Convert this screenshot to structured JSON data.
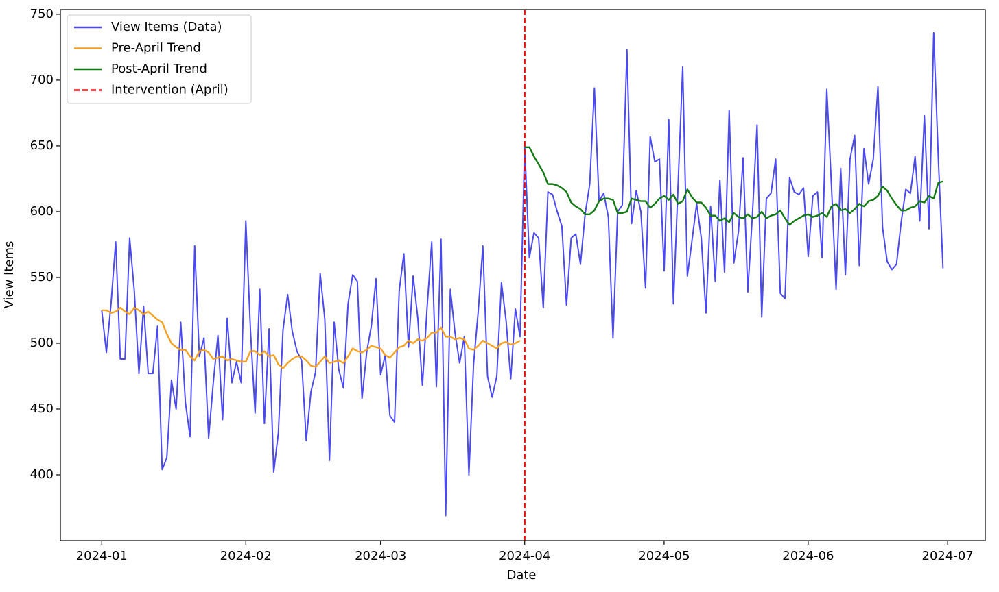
{
  "chart_data": {
    "type": "line",
    "xlabel": "Date",
    "ylabel": "View Items",
    "x": [
      0,
      1,
      2,
      3,
      4,
      5,
      6,
      7,
      8,
      9,
      10,
      11,
      12,
      13,
      14,
      15,
      16,
      17,
      18,
      19,
      20,
      21,
      22,
      23,
      24,
      25,
      26,
      27,
      28,
      29,
      30,
      31,
      32,
      33,
      34,
      35,
      36,
      37,
      38,
      39,
      40,
      41,
      42,
      43,
      44,
      45,
      46,
      47,
      48,
      49,
      50,
      51,
      52,
      53,
      54,
      55,
      56,
      57,
      58,
      59,
      60,
      61,
      62,
      63,
      64,
      65,
      66,
      67,
      68,
      69,
      70,
      71,
      72,
      73,
      74,
      75,
      76,
      77,
      78,
      79,
      80,
      81,
      82,
      83,
      84,
      85,
      86,
      87,
      88,
      89,
      90,
      91,
      92,
      93,
      94,
      95,
      96,
      97,
      98,
      99,
      100,
      101,
      102,
      103,
      104,
      105,
      106,
      107,
      108,
      109,
      110,
      111,
      112,
      113,
      114,
      115,
      116,
      117,
      118,
      119,
      120,
      121,
      122,
      123,
      124,
      125,
      126,
      127,
      128,
      129,
      130,
      131,
      132,
      133,
      134,
      135,
      136,
      137,
      138,
      139,
      140,
      141,
      142,
      143,
      144,
      145,
      146,
      147,
      148,
      149,
      150,
      151,
      152,
      153,
      154,
      155,
      156,
      157,
      158,
      159,
      160,
      161,
      162,
      163,
      164,
      165,
      166,
      167,
      168,
      169,
      170,
      171,
      172,
      173,
      174,
      175,
      176,
      177,
      178,
      179,
      180,
      181
    ],
    "series": [
      {
        "name": "View Items (Data)",
        "color": "#4a4af0",
        "values": [
          525,
          493,
          530,
          577,
          488,
          488,
          580,
          540,
          477,
          528,
          477,
          477,
          513,
          404,
          413,
          472,
          450,
          516,
          455,
          429,
          574,
          490,
          504,
          428,
          470,
          506,
          442,
          519,
          470,
          486,
          470,
          593,
          510,
          447,
          541,
          439,
          511,
          402,
          432,
          510,
          537,
          509,
          494,
          487,
          426,
          463,
          478,
          553,
          518,
          411,
          516,
          480,
          466,
          530,
          552,
          547,
          458,
          493,
          513,
          549,
          476,
          491,
          445,
          440,
          540,
          568,
          497,
          551,
          519,
          468,
          527,
          577,
          467,
          579,
          369,
          541,
          508,
          485,
          505,
          400,
          484,
          524,
          574,
          475,
          459,
          475,
          546,
          517,
          473,
          526,
          505,
          650,
          565,
          584,
          580,
          527,
          615,
          613,
          600,
          589,
          529,
          580,
          583,
          560,
          598,
          621,
          694,
          608,
          614,
          596,
          504,
          600,
          605,
          723,
          591,
          616,
          600,
          542,
          657,
          638,
          640,
          555,
          670,
          530,
          620,
          710,
          551,
          578,
          606,
          580,
          523,
          604,
          547,
          624,
          554,
          677,
          561,
          585,
          641,
          539,
          598,
          666,
          520,
          610,
          614,
          640,
          538,
          534,
          626,
          615,
          613,
          618,
          566,
          612,
          615,
          565,
          693,
          620,
          541,
          633,
          552,
          640,
          658,
          559,
          648,
          621,
          640,
          695,
          588,
          562,
          556,
          560,
          592,
          617,
          614,
          642,
          593,
          673,
          587,
          736,
          640,
          557
        ]
      },
      {
        "name": "Pre-April Trend",
        "color": "#f5a020",
        "values": [
          525,
          525,
          523,
          524,
          527,
          524,
          522,
          527,
          525,
          522,
          524,
          521,
          518,
          516,
          507,
          500,
          497,
          495,
          495,
          490,
          487,
          494,
          495,
          493,
          488,
          489,
          490,
          487,
          488,
          487,
          486,
          486,
          494,
          494,
          491,
          494,
          490,
          491,
          484,
          481,
          485,
          488,
          490,
          490,
          487,
          483,
          482,
          486,
          490,
          485,
          486,
          487,
          485,
          490,
          496,
          494,
          493,
          495,
          498,
          497,
          496,
          491,
          489,
          493,
          497,
          498,
          502,
          500,
          503,
          502,
          504,
          508,
          508,
          512,
          505,
          505,
          503,
          504,
          503,
          496,
          495,
          498,
          502,
          500,
          498,
          496,
          500,
          501,
          499,
          500,
          502,
          null,
          null,
          null,
          null,
          null,
          null,
          null,
          null,
          null,
          null,
          null,
          null,
          null,
          null,
          null,
          null,
          null,
          null,
          null,
          null,
          null,
          null,
          null,
          null,
          null,
          null,
          null,
          null,
          null,
          null,
          null,
          null,
          null,
          null,
          null,
          null,
          null,
          null,
          null,
          null,
          null,
          null,
          null,
          null,
          null,
          null,
          null,
          null,
          null,
          null,
          null,
          null,
          null,
          null,
          null,
          null,
          null,
          null,
          null,
          null,
          null,
          null,
          null,
          null,
          null,
          null,
          null,
          null,
          null,
          null,
          null,
          null,
          null,
          null,
          null,
          null,
          null,
          null,
          null,
          null,
          null,
          null,
          null,
          null,
          null,
          null,
          null,
          null,
          null,
          null,
          null
        ]
      },
      {
        "name": "Post-April Trend",
        "color": "#127a12",
        "values": [
          null,
          null,
          null,
          null,
          null,
          null,
          null,
          null,
          null,
          null,
          null,
          null,
          null,
          null,
          null,
          null,
          null,
          null,
          null,
          null,
          null,
          null,
          null,
          null,
          null,
          null,
          null,
          null,
          null,
          null,
          null,
          null,
          null,
          null,
          null,
          null,
          null,
          null,
          null,
          null,
          null,
          null,
          null,
          null,
          null,
          null,
          null,
          null,
          null,
          null,
          null,
          null,
          null,
          null,
          null,
          null,
          null,
          null,
          null,
          null,
          null,
          null,
          null,
          null,
          null,
          null,
          null,
          null,
          null,
          null,
          null,
          null,
          null,
          null,
          null,
          null,
          null,
          null,
          null,
          null,
          null,
          null,
          null,
          null,
          null,
          null,
          null,
          null,
          null,
          null,
          null,
          649,
          649,
          642,
          636,
          630,
          621,
          621,
          620,
          618,
          615,
          607,
          604,
          602,
          598,
          598,
          601,
          608,
          610,
          610,
          609,
          599,
          599,
          600,
          610,
          609,
          608,
          608,
          603,
          606,
          610,
          612,
          609,
          613,
          606,
          608,
          617,
          611,
          607,
          607,
          603,
          597,
          597,
          593,
          595,
          592,
          599,
          596,
          595,
          598,
          595,
          596,
          600,
          595,
          597,
          598,
          601,
          595,
          590,
          593,
          595,
          597,
          598,
          596,
          597,
          599,
          596,
          604,
          606,
          601,
          602,
          599,
          602,
          606,
          604,
          608,
          609,
          612,
          619,
          616,
          610,
          605,
          601,
          601,
          603,
          604,
          608,
          607,
          612,
          610,
          622,
          623
        ]
      }
    ],
    "vlines": [
      {
        "x": 91,
        "label": "Intervention (April)",
        "color": "#e01010"
      }
    ],
    "xlim": [
      -8.9,
      190.1
    ],
    "xticks": [
      {
        "value": 0,
        "label": "2024-01"
      },
      {
        "value": 31,
        "label": "2024-02"
      },
      {
        "value": 60,
        "label": "2024-03"
      },
      {
        "value": 91,
        "label": "2024-04"
      },
      {
        "value": 121,
        "label": "2024-05"
      },
      {
        "value": 152,
        "label": "2024-06"
      },
      {
        "value": 182,
        "label": "2024-07"
      }
    ],
    "ylim": [
      350,
      753.6
    ],
    "yticks": [
      400,
      450,
      500,
      550,
      600,
      650,
      700,
      750
    ],
    "grid": false,
    "legend": "upper left"
  }
}
